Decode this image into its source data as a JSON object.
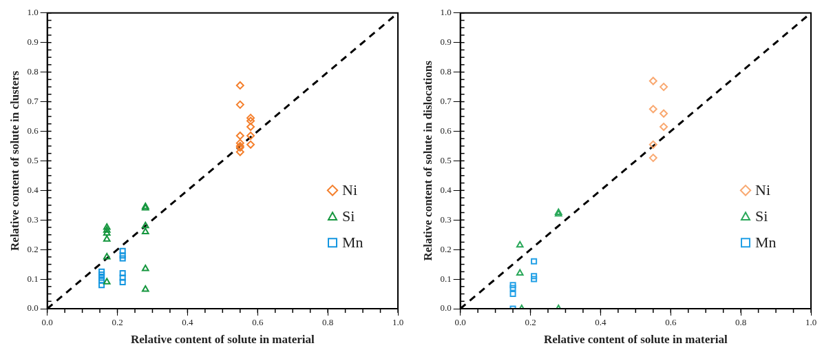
{
  "chart_data": [
    {
      "type": "scatter",
      "xlabel": "Relative content of solute in material",
      "ylabel": "Relative content of solute in clusters",
      "xlim": [
        0,
        1
      ],
      "ylim": [
        0,
        1
      ],
      "xticks": [
        {
          "value": 0,
          "label": "0.0"
        },
        {
          "value": 0.2,
          "label": "0.2"
        },
        {
          "value": 0.4,
          "label": "0.4"
        },
        {
          "value": 0.6,
          "label": "0.6"
        },
        {
          "value": 0.8,
          "label": "0.8"
        },
        {
          "value": 1,
          "label": "1.0"
        }
      ],
      "yticks": [
        {
          "value": 0,
          "label": "0.0"
        },
        {
          "value": 0.1,
          "label": "0.1"
        },
        {
          "value": 0.2,
          "label": "0.2"
        },
        {
          "value": 0.3,
          "label": "0.3"
        },
        {
          "value": 0.4,
          "label": "0.4"
        },
        {
          "value": 0.5,
          "label": "0.5"
        },
        {
          "value": 0.6,
          "label": "0.6"
        },
        {
          "value": 0.7,
          "label": "0.7"
        },
        {
          "value": 0.8,
          "label": "0.8"
        },
        {
          "value": 0.9,
          "label": "0.9"
        },
        {
          "value": 1,
          "label": "1.0"
        }
      ],
      "grid": false,
      "legend": "right",
      "series": [
        {
          "name": "Ni",
          "color": "#f47f2c",
          "marker": "diamond",
          "x": [
            0.55,
            0.55,
            0.55,
            0.55,
            0.55,
            0.55,
            0.55,
            0.58,
            0.58,
            0.58,
            0.58,
            0.58
          ],
          "values": [
            0.755,
            0.69,
            0.585,
            0.56,
            0.55,
            0.545,
            0.53,
            0.645,
            0.635,
            0.615,
            0.585,
            0.555
          ]
        },
        {
          "name": "Si",
          "color": "#15963e",
          "marker": "triangle",
          "x": [
            0.17,
            0.17,
            0.17,
            0.17,
            0.17,
            0.17,
            0.28,
            0.28,
            0.28,
            0.28,
            0.28,
            0.28
          ],
          "values": [
            0.275,
            0.265,
            0.255,
            0.235,
            0.175,
            0.09,
            0.345,
            0.34,
            0.28,
            0.26,
            0.135,
            0.065
          ]
        },
        {
          "name": "Mn",
          "color": "#1496e0",
          "marker": "square",
          "x": [
            0.155,
            0.155,
            0.155,
            0.155,
            0.155,
            0.215,
            0.215,
            0.215,
            0.215,
            0.215,
            0.215
          ],
          "values": [
            0.125,
            0.115,
            0.105,
            0.095,
            0.08,
            0.195,
            0.18,
            0.17,
            0.12,
            0.105,
            0.09
          ]
        },
        {
          "type": "line",
          "color": "#000000",
          "line_style": "dashed",
          "marker": "none",
          "x": [
            0,
            1
          ],
          "values": [
            0,
            1
          ]
        }
      ]
    },
    {
      "type": "scatter",
      "xlabel": "Relative content of solute in material",
      "ylabel": "Relative content of solute in dislocations",
      "xlim": [
        0,
        1
      ],
      "ylim": [
        0,
        1
      ],
      "xticks": [
        {
          "value": 0,
          "label": "0.0"
        },
        {
          "value": 0.2,
          "label": "0.2"
        },
        {
          "value": 0.4,
          "label": "0.4"
        },
        {
          "value": 0.6,
          "label": "0.6"
        },
        {
          "value": 0.8,
          "label": "0.8"
        },
        {
          "value": 1,
          "label": "1.0"
        }
      ],
      "yticks": [
        {
          "value": 0,
          "label": "0.0"
        },
        {
          "value": 0.1,
          "label": "0.1"
        },
        {
          "value": 0.2,
          "label": "0.2"
        },
        {
          "value": 0.3,
          "label": "0.3"
        },
        {
          "value": 0.4,
          "label": "0.4"
        },
        {
          "value": 0.5,
          "label": "0.5"
        },
        {
          "value": 0.6,
          "label": "0.6"
        },
        {
          "value": 0.7,
          "label": "0.7"
        },
        {
          "value": 0.8,
          "label": "0.8"
        },
        {
          "value": 0.9,
          "label": "0.9"
        },
        {
          "value": 1,
          "label": "1.0"
        }
      ],
      "grid": false,
      "legend": "right",
      "series": [
        {
          "name": "Ni",
          "color": "#f9a870",
          "marker": "diamond",
          "x": [
            0.55,
            0.55,
            0.55,
            0.55,
            0.58,
            0.58,
            0.58
          ],
          "values": [
            0.77,
            0.675,
            0.555,
            0.51,
            0.75,
            0.66,
            0.615
          ]
        },
        {
          "name": "Si",
          "color": "#2aa85a",
          "marker": "triangle",
          "x": [
            0.17,
            0.17,
            0.175,
            0.28,
            0.28,
            0.28
          ],
          "values": [
            0.215,
            0.12,
            0,
            0.325,
            0.32,
            0
          ]
        },
        {
          "name": "Mn",
          "color": "#22a0e6",
          "marker": "square",
          "x": [
            0.15,
            0.15,
            0.15,
            0.15,
            0.21,
            0.21,
            0.21
          ],
          "values": [
            0.08,
            0.07,
            0.05,
            0,
            0.16,
            0.11,
            0.1
          ]
        },
        {
          "type": "line",
          "color": "#000000",
          "line_style": "dashed",
          "marker": "none",
          "x": [
            0,
            1
          ],
          "values": [
            0,
            1
          ]
        }
      ]
    }
  ]
}
